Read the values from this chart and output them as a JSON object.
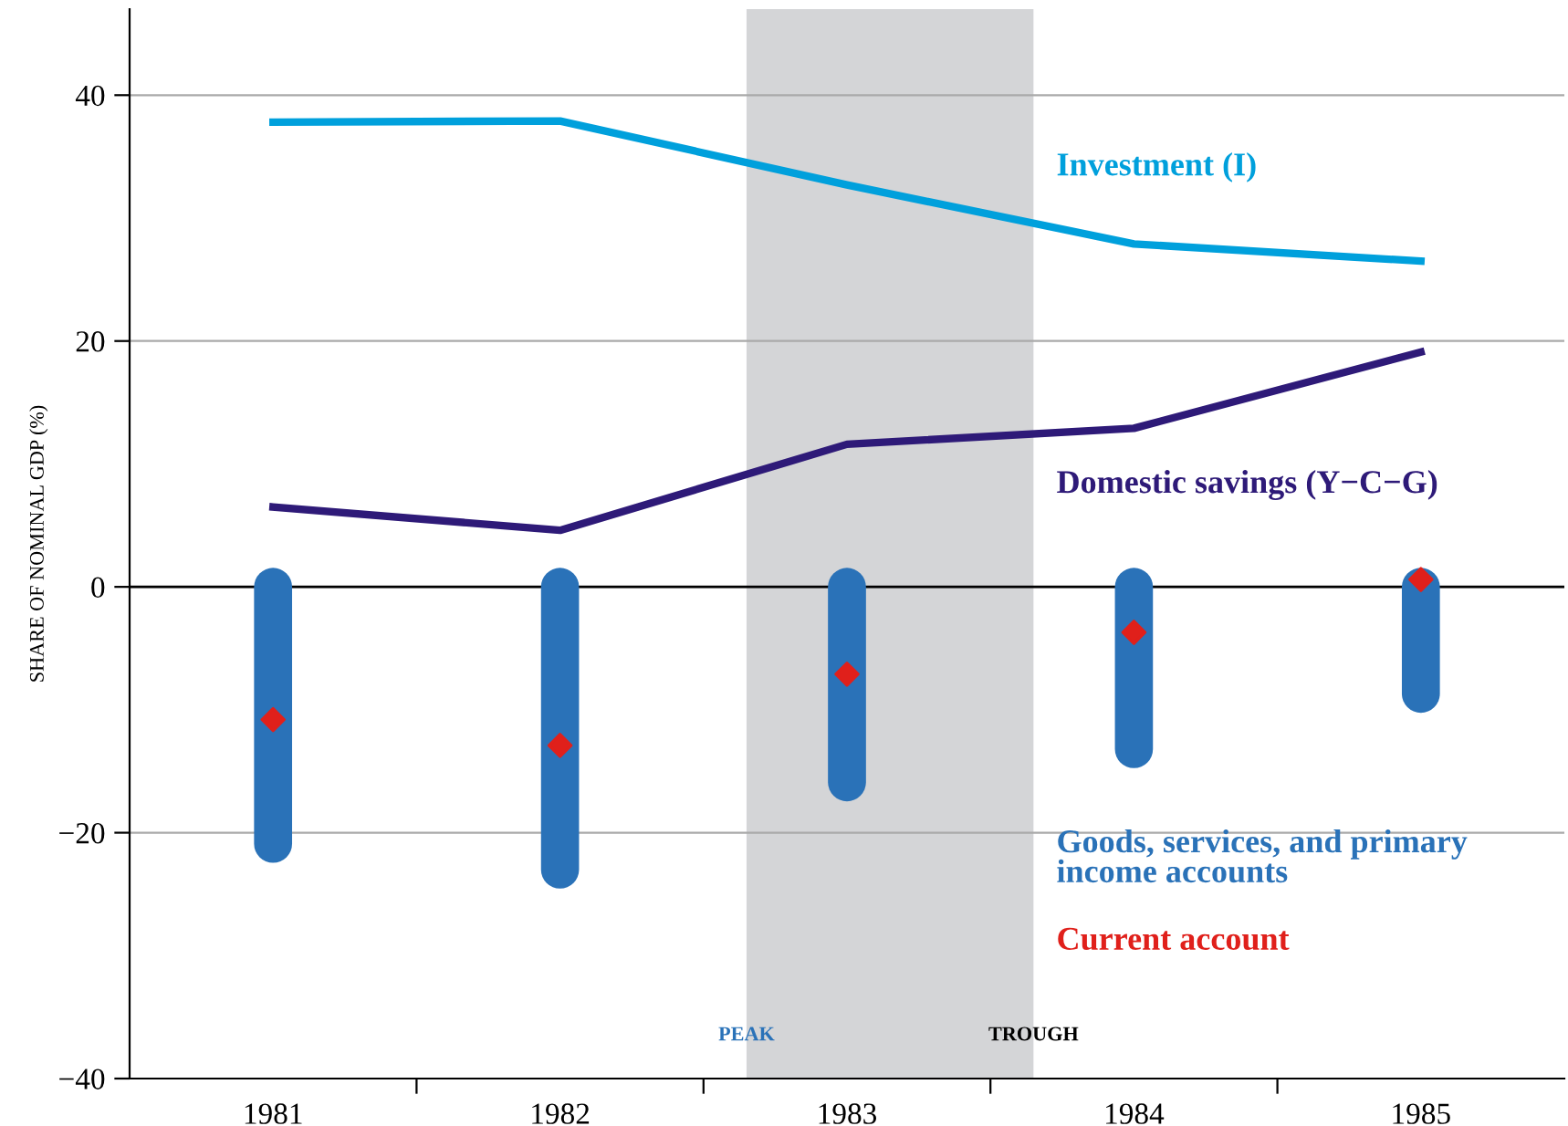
{
  "chart_data": {
    "type": "line",
    "ylabel": "SHARE OF NOMINAL GDP (%)",
    "x": [
      1981,
      1982,
      1983,
      1984,
      1985
    ],
    "xlim": [
      1980.5,
      1985.5
    ],
    "xticks": [
      {
        "value": 1981,
        "label": "1981"
      },
      {
        "value": 1981.5,
        "label": null
      },
      {
        "value": 1982,
        "label": "1982"
      },
      {
        "value": 1982.5,
        "label": null
      },
      {
        "value": 1983,
        "label": "1983"
      },
      {
        "value": 1983.5,
        "label": null
      },
      {
        "value": 1984,
        "label": "1984"
      },
      {
        "value": 1984.5,
        "label": null
      },
      {
        "value": 1985,
        "label": "1985"
      }
    ],
    "ylim": [
      -40,
      47
    ],
    "yticks": [
      {
        "value": -40,
        "label": "−40"
      },
      {
        "value": -20,
        "label": "−20"
      },
      0,
      20,
      40
    ],
    "grid": "y",
    "series": [
      {
        "name": "Investment (I)",
        "color": "#00a0dc",
        "values": [
          37.8,
          37.9,
          32.7,
          27.9,
          26.5
        ]
      },
      {
        "name": "Domestic savings (Y−C−G)",
        "color": "#2e1a78",
        "values": [
          6.5,
          4.6,
          11.6,
          12.9,
          19.1
        ]
      },
      {
        "name": "Goods, services, and primary\nincome accounts",
        "type": "bar",
        "color": "#2a72b8",
        "base": [
          0,
          0,
          0,
          0,
          0
        ],
        "values": [
          -20.9,
          -23,
          -15.9,
          -13.2,
          -8.7
        ]
      },
      {
        "name": "Current account",
        "type": "scatter",
        "marker": "diamond",
        "color": "#e0201b",
        "values": [
          -10.8,
          -12.9,
          -7.1,
          -3.7,
          0.6
        ]
      }
    ],
    "ref_lines": [
      {
        "axis": "y",
        "value": 0,
        "color": "#000000"
      }
    ],
    "bands": [
      {
        "axis": "x",
        "from": 1982.65,
        "to": 1983.65,
        "color": "#d4d5d7"
      }
    ],
    "annotations": [
      {
        "text": "PEAK",
        "x": 1982.65,
        "y": -36.5
      },
      {
        "text": "TROUGH",
        "x": 1983.65,
        "y": -36.5
      }
    ]
  }
}
